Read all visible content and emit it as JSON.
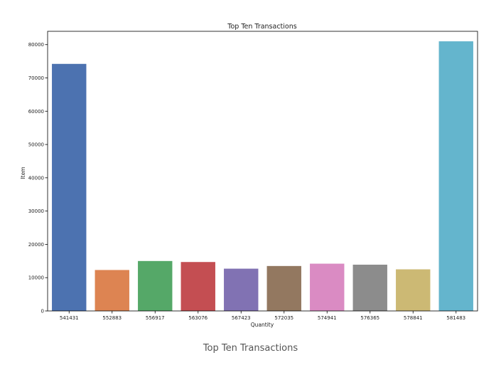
{
  "caption": "Top Ten Transactions",
  "chart_data": {
    "type": "bar",
    "title": "Top Ten Transactions",
    "xlabel": "Quantity",
    "ylabel": "Item",
    "categories": [
      "541431",
      "552883",
      "556917",
      "563076",
      "567423",
      "572035",
      "574941",
      "576365",
      "578841",
      "581483"
    ],
    "values": [
      74215,
      12300,
      15000,
      14700,
      12700,
      13500,
      14200,
      13900,
      12500,
      80995
    ],
    "colors": [
      "#4c72b0",
      "#dd8452",
      "#55a868",
      "#c44e52",
      "#8172b3",
      "#937860",
      "#da8bc3",
      "#8c8c8c",
      "#ccb974",
      "#64b5cd"
    ],
    "ylim": [
      0,
      84000
    ],
    "yticks": [
      0,
      10000,
      20000,
      30000,
      40000,
      50000,
      60000,
      70000,
      80000
    ],
    "grid": false,
    "legend": "none"
  }
}
